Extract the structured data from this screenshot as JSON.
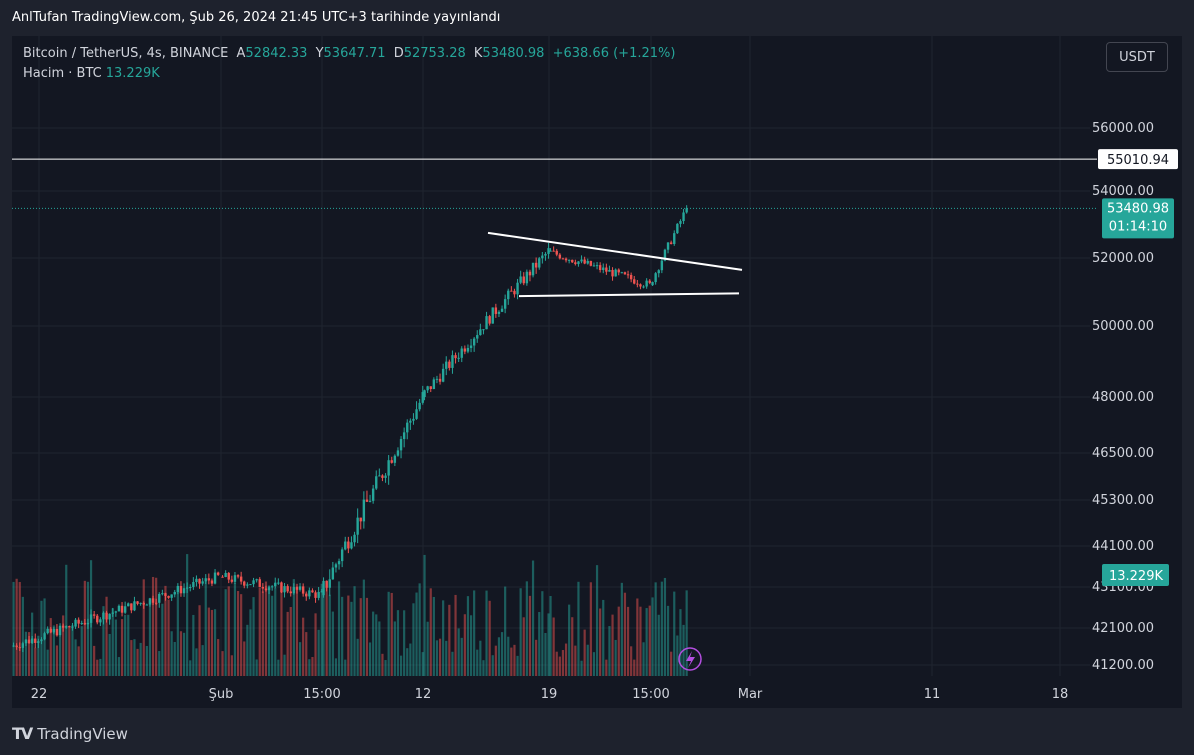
{
  "published": "AnlTufan TradingView.com, Şub 26, 2024 21:45 UTC+3 tarihinde yayınlandı",
  "symbol": {
    "title": "Bitcoin / TetherUS, 4s, BINANCE",
    "open_label": "A",
    "open": "52842.33",
    "high_label": "Y",
    "high": "53647.71",
    "low_label": "D",
    "low": "52753.28",
    "close_label": "K",
    "close": "53480.98",
    "change": "+638.66 (+1.21%)"
  },
  "volume_legend": {
    "label": "Hacim · BTC",
    "value": "13.229K"
  },
  "currency_button": "USDT",
  "colors": {
    "up": "#26a69a",
    "down": "#ef5350",
    "bg": "#131722",
    "grid": "#1f2430",
    "text": "#d1d4dc",
    "line": "#ffffff"
  },
  "chart_data": {
    "type": "candlestick",
    "x_ticks": [
      "22",
      "Şub",
      "15:00",
      "12",
      "19",
      "15:00",
      "Mar",
      "11",
      "18"
    ],
    "y_ticks": [
      "56000.00",
      "54000.00",
      "52000.00",
      "50000.00",
      "48000.00",
      "46500.00",
      "45300.00",
      "44100.00",
      "43100.00",
      "42100.00",
      "41200.00"
    ],
    "y_tick_values": [
      56000,
      54000,
      52000,
      50000,
      48000,
      46500,
      45300,
      44100,
      43100,
      42100,
      41200
    ],
    "price_labels": {
      "horizontal_line": {
        "value": 55010.94,
        "text": "55010.94"
      },
      "last_price": {
        "value": 53480.98,
        "text": "53480.98",
        "countdown": "01:14:10"
      },
      "volume": {
        "text": "13.229K"
      }
    },
    "candles_approx": {
      "note_ranges": "price path approximated from axis",
      "segments": [
        {
          "from_tick": "22",
          "to_tick": "Şub",
          "start": 41650,
          "end": 43350
        },
        {
          "from_tick": "Şub",
          "to_tick": "15:00",
          "start": 43350,
          "end": 42900
        },
        {
          "from_tick": "15:00",
          "to_tick": "12",
          "start": 42900,
          "end": 48000
        },
        {
          "from_tick": "12",
          "to_tick": "19",
          "start": 48000,
          "end": 52200
        },
        {
          "from_tick": "19",
          "to_tick": "15:00",
          "start": 52200,
          "end": 51200
        },
        {
          "from_tick": "15:00",
          "to_tick": "end",
          "start": 51200,
          "end": 53480.98
        }
      ]
    },
    "trendlines": [
      {
        "name": "upper",
        "from": 52750,
        "to": 51650
      },
      {
        "name": "lower",
        "from": 50880,
        "to": 50960
      }
    ]
  }
}
